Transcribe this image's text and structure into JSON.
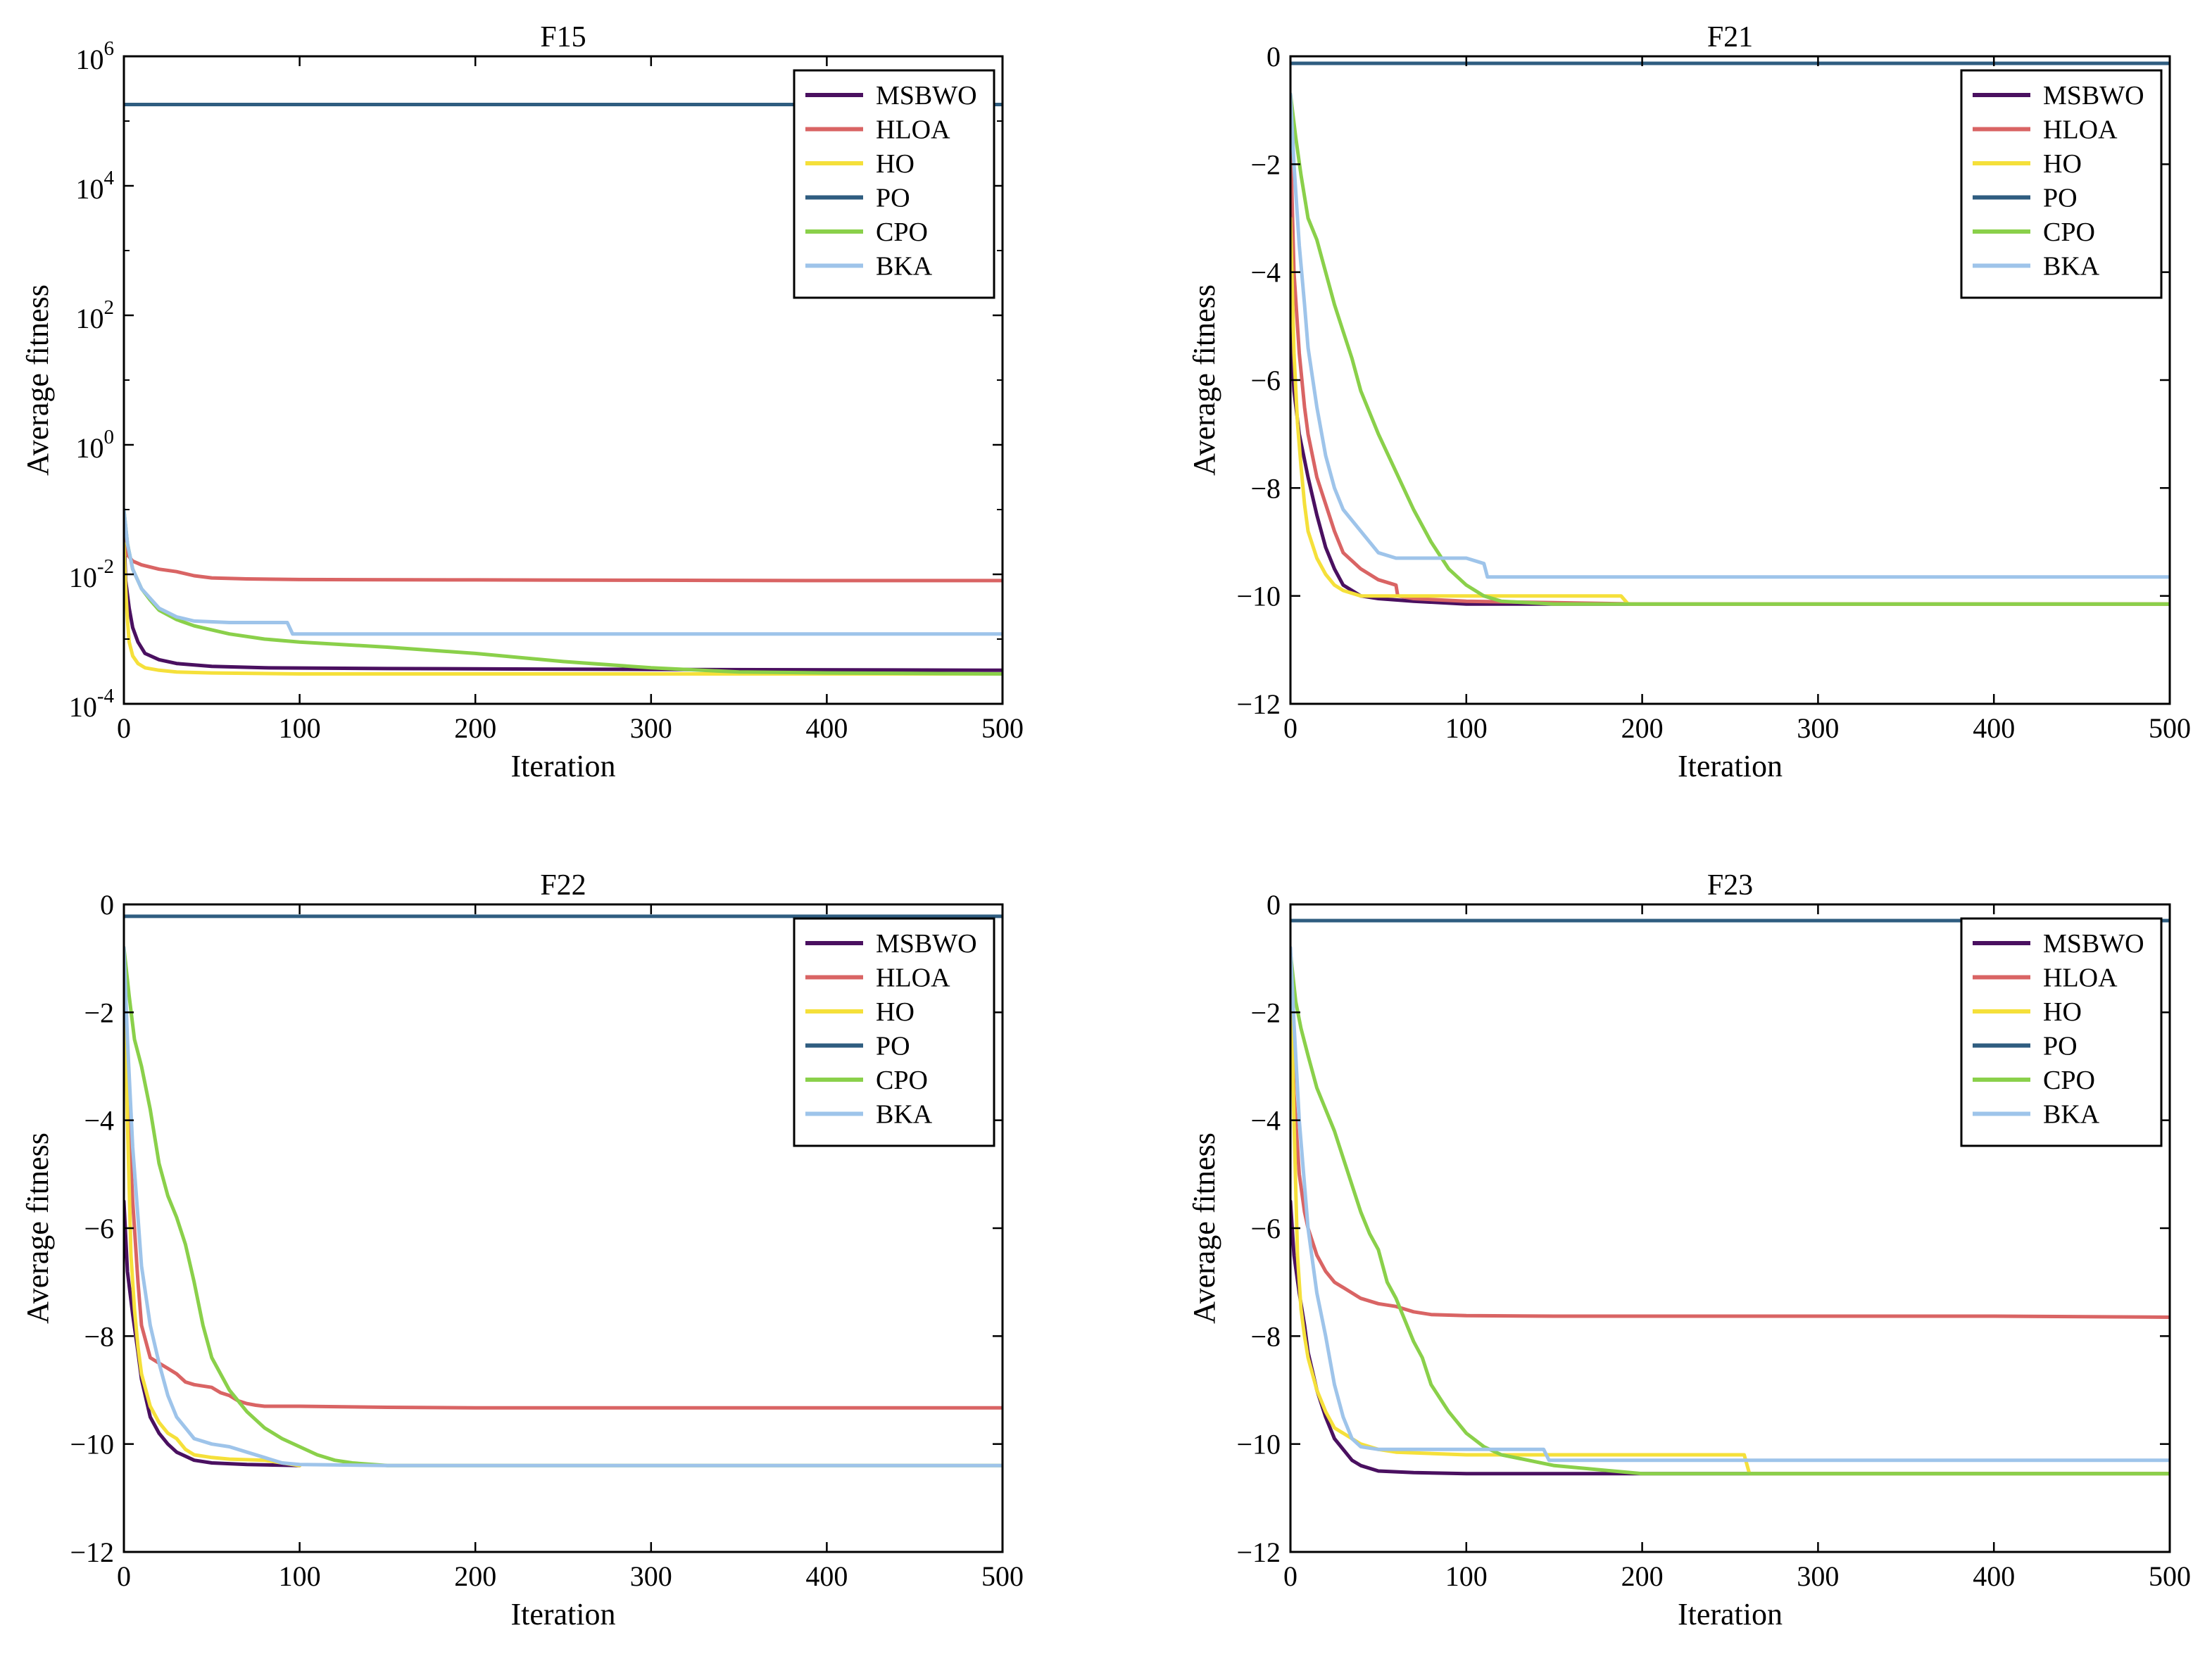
{
  "legend_entries": [
    "MSBWO",
    "HLOA",
    "HO",
    "PO",
    "CPO",
    "BKA"
  ],
  "series_colors": {
    "MSBWO": "#4a1060",
    "HLOA": "#d96464",
    "HO": "#f5e03a",
    "PO": "#2f5d80",
    "CPO": "#8ad04a",
    "BKA": "#9ec4ea"
  },
  "chart_data": [
    {
      "type": "line",
      "title": "F15",
      "xlabel": "Iteration",
      "ylabel": "Average fitness",
      "yscale": "log",
      "xlim": [
        0,
        500
      ],
      "ylim": [
        0.0001,
        1000000
      ],
      "xticks": [
        0,
        100,
        200,
        300,
        400,
        500
      ],
      "xtick_labels": [
        "0",
        "100",
        "200",
        "300",
        "400",
        "500"
      ],
      "yticks": [
        0.0001,
        0.01,
        1,
        100,
        10000,
        1000000
      ],
      "ytick_labels": [
        {
          "base": "10",
          "exp": "-4"
        },
        {
          "base": "10",
          "exp": "-2"
        },
        {
          "base": "10",
          "exp": "0"
        },
        {
          "base": "10",
          "exp": "2"
        },
        {
          "base": "10",
          "exp": "4"
        },
        {
          "base": "10",
          "exp": "6"
        }
      ],
      "legend_position": "top-right",
      "series": [
        {
          "name": "MSBWO",
          "x": [
            0,
            1,
            3,
            5,
            8,
            12,
            20,
            30,
            50,
            80,
            150,
            300,
            500
          ],
          "y": [
            0.05,
            0.008,
            0.003,
            0.0015,
            0.0009,
            0.0006,
            0.00048,
            0.00042,
            0.00038,
            0.00036,
            0.00035,
            0.00034,
            0.00033
          ]
        },
        {
          "name": "HLOA",
          "x": [
            0,
            2,
            5,
            10,
            20,
            30,
            40,
            50,
            70,
            100,
            200,
            300,
            400,
            500
          ],
          "y": [
            0.06,
            0.02,
            0.016,
            0.014,
            0.012,
            0.011,
            0.0095,
            0.0088,
            0.0085,
            0.0083,
            0.0082,
            0.0081,
            0.008,
            0.008
          ]
        },
        {
          "name": "HO",
          "x": [
            0,
            1,
            2,
            3,
            5,
            8,
            12,
            20,
            30,
            50,
            100,
            200,
            300,
            500
          ],
          "y": [
            0.03,
            0.006,
            0.002,
            0.0009,
            0.00055,
            0.00042,
            0.00036,
            0.00033,
            0.00031,
            0.0003,
            0.00029,
            0.00029,
            0.00029,
            0.00029
          ]
        },
        {
          "name": "PO",
          "x": [
            0,
            500
          ],
          "y": [
            180000,
            180000
          ]
        },
        {
          "name": "CPO",
          "x": [
            0,
            2,
            5,
            10,
            15,
            20,
            30,
            40,
            60,
            80,
            100,
            150,
            200,
            250,
            300,
            350,
            400,
            500
          ],
          "y": [
            0.1,
            0.03,
            0.012,
            0.006,
            0.004,
            0.0028,
            0.002,
            0.0016,
            0.0012,
            0.001,
            0.0009,
            0.00075,
            0.0006,
            0.00045,
            0.00036,
            0.00031,
            0.0003,
            0.00029
          ]
        },
        {
          "name": "BKA",
          "x": [
            0,
            2,
            5,
            10,
            20,
            30,
            40,
            60,
            80,
            93,
            96,
            100,
            200,
            300,
            400,
            500
          ],
          "y": [
            0.1,
            0.03,
            0.012,
            0.006,
            0.003,
            0.0022,
            0.0019,
            0.0018,
            0.0018,
            0.0018,
            0.0012,
            0.0012,
            0.0012,
            0.0012,
            0.0012,
            0.0012
          ]
        }
      ]
    },
    {
      "type": "line",
      "title": "F21",
      "xlabel": "Iteration",
      "ylabel": "Average fitness",
      "yscale": "linear",
      "xlim": [
        0,
        500
      ],
      "ylim": [
        -12,
        0
      ],
      "xticks": [
        0,
        100,
        200,
        300,
        400,
        500
      ],
      "xtick_labels": [
        "0",
        "100",
        "200",
        "300",
        "400",
        "500"
      ],
      "yticks": [
        0,
        -2,
        -4,
        -6,
        -8,
        -10,
        -12
      ],
      "ytick_labels": [
        "0",
        "−2",
        "−4",
        "−6",
        "−8",
        "−10",
        "−12"
      ],
      "legend_position": "top-right",
      "series": [
        {
          "name": "MSBWO",
          "x": [
            0,
            2,
            5,
            10,
            15,
            20,
            25,
            30,
            40,
            50,
            70,
            100,
            150,
            200,
            500
          ],
          "y": [
            -5,
            -6.2,
            -7,
            -7.8,
            -8.5,
            -9.1,
            -9.5,
            -9.8,
            -10.0,
            -10.05,
            -10.1,
            -10.15,
            -10.15,
            -10.15,
            -10.15
          ]
        },
        {
          "name": "HLOA",
          "x": [
            0,
            2,
            5,
            8,
            10,
            15,
            20,
            25,
            30,
            40,
            50,
            60,
            61,
            70,
            100,
            200,
            500
          ],
          "y": [
            -1.5,
            -4,
            -5.5,
            -6.5,
            -7,
            -7.8,
            -8.3,
            -8.8,
            -9.2,
            -9.5,
            -9.7,
            -9.8,
            -10.0,
            -10.05,
            -10.1,
            -10.15,
            -10.15
          ]
        },
        {
          "name": "HO",
          "x": [
            0,
            2,
            4,
            6,
            8,
            10,
            15,
            20,
            25,
            30,
            40,
            60,
            100,
            150,
            188,
            192,
            250,
            500
          ],
          "y": [
            -3,
            -5.5,
            -6.8,
            -7.6,
            -8.3,
            -8.8,
            -9.3,
            -9.6,
            -9.8,
            -9.9,
            -10.0,
            -10.0,
            -10.0,
            -10.0,
            -10.0,
            -10.15,
            -10.15,
            -10.15
          ]
        },
        {
          "name": "PO",
          "x": [
            0,
            500
          ],
          "y": [
            -0.13,
            -0.13
          ]
        },
        {
          "name": "CPO",
          "x": [
            0,
            3,
            6,
            10,
            15,
            20,
            25,
            30,
            35,
            40,
            50,
            60,
            70,
            80,
            90,
            100,
            110,
            120,
            150,
            200,
            500
          ],
          "y": [
            -0.7,
            -1.5,
            -2.2,
            -3,
            -3.4,
            -4,
            -4.6,
            -5.1,
            -5.6,
            -6.2,
            -7,
            -7.7,
            -8.4,
            -9,
            -9.5,
            -9.8,
            -10.0,
            -10.1,
            -10.15,
            -10.15,
            -10.15
          ]
        },
        {
          "name": "BKA",
          "x": [
            0,
            2,
            5,
            8,
            10,
            15,
            20,
            25,
            30,
            40,
            50,
            60,
            80,
            100,
            110,
            112,
            200,
            300,
            400,
            500
          ],
          "y": [
            -0.7,
            -2,
            -3.5,
            -4.6,
            -5.4,
            -6.5,
            -7.4,
            -8,
            -8.4,
            -8.8,
            -9.2,
            -9.3,
            -9.3,
            -9.3,
            -9.4,
            -9.65,
            -9.65,
            -9.65,
            -9.65,
            -9.65
          ]
        }
      ]
    },
    {
      "type": "line",
      "title": "F22",
      "xlabel": "Iteration",
      "ylabel": "Average fitness",
      "yscale": "linear",
      "xlim": [
        0,
        500
      ],
      "ylim": [
        -12,
        0
      ],
      "xticks": [
        0,
        100,
        200,
        300,
        400,
        500
      ],
      "xtick_labels": [
        "0",
        "100",
        "200",
        "300",
        "400",
        "500"
      ],
      "yticks": [
        0,
        -2,
        -4,
        -6,
        -8,
        -10,
        -12
      ],
      "ytick_labels": [
        "0",
        "−2",
        "−4",
        "−6",
        "−8",
        "−10",
        "−12"
      ],
      "legend_position": "top-right",
      "series": [
        {
          "name": "MSBWO",
          "x": [
            0,
            2,
            5,
            8,
            10,
            15,
            20,
            25,
            30,
            40,
            50,
            70,
            100
          ],
          "y": [
            -5.5,
            -6.8,
            -7.6,
            -8.3,
            -8.8,
            -9.5,
            -9.8,
            -10.0,
            -10.15,
            -10.3,
            -10.35,
            -10.38,
            -10.4
          ]
        },
        {
          "name": "HLOA",
          "x": [
            0,
            2,
            5,
            8,
            10,
            15,
            20,
            25,
            30,
            35,
            40,
            50,
            55,
            60,
            65,
            70,
            75,
            80,
            100,
            150,
            200,
            500
          ],
          "y": [
            -1,
            -3.5,
            -5.5,
            -7,
            -7.8,
            -8.4,
            -8.5,
            -8.6,
            -8.7,
            -8.85,
            -8.9,
            -8.95,
            -9.05,
            -9.1,
            -9.2,
            -9.25,
            -9.28,
            -9.3,
            -9.3,
            -9.32,
            -9.33,
            -9.33
          ]
        },
        {
          "name": "HO",
          "x": [
            0,
            2,
            4,
            6,
            8,
            10,
            15,
            20,
            25,
            30,
            35,
            40,
            50,
            60,
            80,
            100
          ],
          "y": [
            -0.8,
            -4,
            -6.5,
            -7.5,
            -8.2,
            -8.7,
            -9.3,
            -9.6,
            -9.8,
            -9.9,
            -10.1,
            -10.2,
            -10.25,
            -10.28,
            -10.3,
            -10.4
          ]
        },
        {
          "name": "PO",
          "x": [
            0,
            500
          ],
          "y": [
            -0.22,
            -0.22
          ]
        },
        {
          "name": "CPO",
          "x": [
            0,
            3,
            6,
            10,
            15,
            20,
            25,
            30,
            35,
            40,
            45,
            50,
            60,
            70,
            80,
            90,
            100,
            110,
            120,
            130,
            150,
            500
          ],
          "y": [
            -0.8,
            -1.7,
            -2.5,
            -3,
            -3.8,
            -4.8,
            -5.4,
            -5.8,
            -6.3,
            -7,
            -7.8,
            -8.4,
            -9,
            -9.4,
            -9.7,
            -9.9,
            -10.05,
            -10.2,
            -10.3,
            -10.35,
            -10.4,
            -10.4
          ]
        },
        {
          "name": "BKA",
          "x": [
            0,
            2,
            5,
            8,
            10,
            15,
            20,
            25,
            30,
            40,
            50,
            60,
            70,
            80,
            90,
            100,
            150,
            200,
            300,
            400,
            500
          ],
          "y": [
            -0.8,
            -2.5,
            -4.5,
            -5.8,
            -6.7,
            -7.8,
            -8.5,
            -9.1,
            -9.5,
            -9.9,
            -10.0,
            -10.05,
            -10.15,
            -10.25,
            -10.35,
            -10.38,
            -10.4,
            -10.4,
            -10.4,
            -10.4,
            -10.4
          ]
        }
      ]
    },
    {
      "type": "line",
      "title": "F23",
      "xlabel": "Iteration",
      "ylabel": "Average fitness",
      "yscale": "linear",
      "xlim": [
        0,
        500
      ],
      "ylim": [
        -12,
        0
      ],
      "xticks": [
        0,
        100,
        200,
        300,
        400,
        500
      ],
      "xtick_labels": [
        "0",
        "100",
        "200",
        "300",
        "400",
        "500"
      ],
      "yticks": [
        0,
        -2,
        -4,
        -6,
        -8,
        -10,
        -12
      ],
      "ytick_labels": [
        "0",
        "−2",
        "−4",
        "−6",
        "−8",
        "−10",
        "−12"
      ],
      "legend_position": "top-right",
      "series": [
        {
          "name": "MSBWO",
          "x": [
            0,
            2,
            5,
            8,
            10,
            15,
            20,
            25,
            30,
            35,
            40,
            50,
            70,
            100,
            150,
            200,
            500
          ],
          "y": [
            -5.5,
            -6.5,
            -7.2,
            -7.8,
            -8.3,
            -9,
            -9.5,
            -9.9,
            -10.1,
            -10.3,
            -10.4,
            -10.5,
            -10.53,
            -10.55,
            -10.55,
            -10.55,
            -10.55
          ]
        },
        {
          "name": "HLOA",
          "x": [
            0,
            2,
            5,
            8,
            10,
            15,
            20,
            25,
            30,
            40,
            50,
            60,
            65,
            70,
            80,
            100,
            150,
            200,
            300,
            400,
            500
          ],
          "y": [
            -1,
            -3.5,
            -5,
            -5.7,
            -6,
            -6.5,
            -6.8,
            -7,
            -7.1,
            -7.3,
            -7.4,
            -7.45,
            -7.5,
            -7.55,
            -7.6,
            -7.62,
            -7.63,
            -7.63,
            -7.63,
            -7.63,
            -7.65
          ]
        },
        {
          "name": "HO",
          "x": [
            0,
            2,
            4,
            6,
            8,
            10,
            15,
            20,
            25,
            30,
            35,
            40,
            50,
            60,
            100,
            150,
            200,
            258,
            261,
            300,
            500
          ],
          "y": [
            -1,
            -4,
            -6.5,
            -7.5,
            -8,
            -8.4,
            -9,
            -9.4,
            -9.7,
            -9.8,
            -9.9,
            -10.0,
            -10.1,
            -10.15,
            -10.2,
            -10.2,
            -10.2,
            -10.2,
            -10.55,
            -10.55,
            -10.55
          ]
        },
        {
          "name": "PO",
          "x": [
            0,
            500
          ],
          "y": [
            -0.3,
            -0.3
          ]
        },
        {
          "name": "CPO",
          "x": [
            0,
            3,
            6,
            10,
            15,
            20,
            25,
            30,
            35,
            40,
            45,
            50,
            55,
            60,
            65,
            70,
            75,
            80,
            90,
            100,
            110,
            120,
            150,
            200,
            500
          ],
          "y": [
            -0.9,
            -1.8,
            -2.3,
            -2.8,
            -3.4,
            -3.8,
            -4.2,
            -4.7,
            -5.2,
            -5.7,
            -6.1,
            -6.4,
            -7,
            -7.3,
            -7.7,
            -8.1,
            -8.4,
            -8.9,
            -9.4,
            -9.8,
            -10.05,
            -10.2,
            -10.4,
            -10.55,
            -10.55
          ]
        },
        {
          "name": "BKA",
          "x": [
            0,
            2,
            5,
            8,
            10,
            15,
            20,
            25,
            30,
            35,
            40,
            50,
            80,
            100,
            144,
            147,
            200,
            300,
            400,
            500
          ],
          "y": [
            -0.8,
            -2.2,
            -4,
            -5.2,
            -6,
            -7.2,
            -8,
            -8.9,
            -9.5,
            -9.9,
            -10.05,
            -10.1,
            -10.1,
            -10.1,
            -10.1,
            -10.3,
            -10.3,
            -10.3,
            -10.3,
            -10.3
          ]
        }
      ]
    }
  ]
}
